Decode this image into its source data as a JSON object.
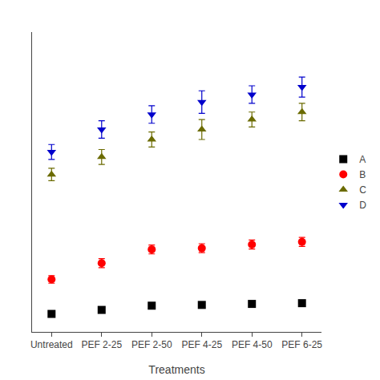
{
  "chart_data": {
    "type": "scatter",
    "xlabel": "Treatments",
    "categories": [
      "Untreated",
      "PEF 2-25",
      "PEF 2-50",
      "PEF 4-25",
      "PEF 4-50",
      "PEF 6-25"
    ],
    "series": [
      {
        "name": "A",
        "color": "#000000",
        "marker": "square",
        "values": [
          2.2,
          3.8,
          5.5,
          5.8,
          6.2,
          6.5
        ],
        "errors": [
          0.5,
          0.5,
          0.6,
          0.6,
          0.6,
          0.6
        ]
      },
      {
        "name": "B",
        "color": "#ff0000",
        "marker": "circle",
        "values": [
          16.0,
          22.5,
          28.0,
          28.5,
          30.0,
          31.0
        ],
        "errors": [
          1.5,
          1.8,
          1.8,
          1.8,
          1.8,
          1.8
        ]
      },
      {
        "name": "C",
        "color": "#6b6b00",
        "marker": "triangle-up",
        "values": [
          58.0,
          65.0,
          72.0,
          76.0,
          80.0,
          83.0
        ],
        "errors": [
          2.5,
          3.0,
          3.0,
          4.0,
          3.0,
          3.5
        ]
      },
      {
        "name": "D",
        "color": "#0000cc",
        "marker": "triangle-down",
        "values": [
          67.0,
          76.0,
          82.0,
          87.0,
          90.0,
          93.0
        ],
        "errors": [
          3.0,
          3.5,
          3.5,
          4.5,
          3.5,
          4.0
        ]
      }
    ],
    "ylim": [
      -5,
      115
    ],
    "tick_labels": "x",
    "grid": false,
    "legend": "right"
  }
}
